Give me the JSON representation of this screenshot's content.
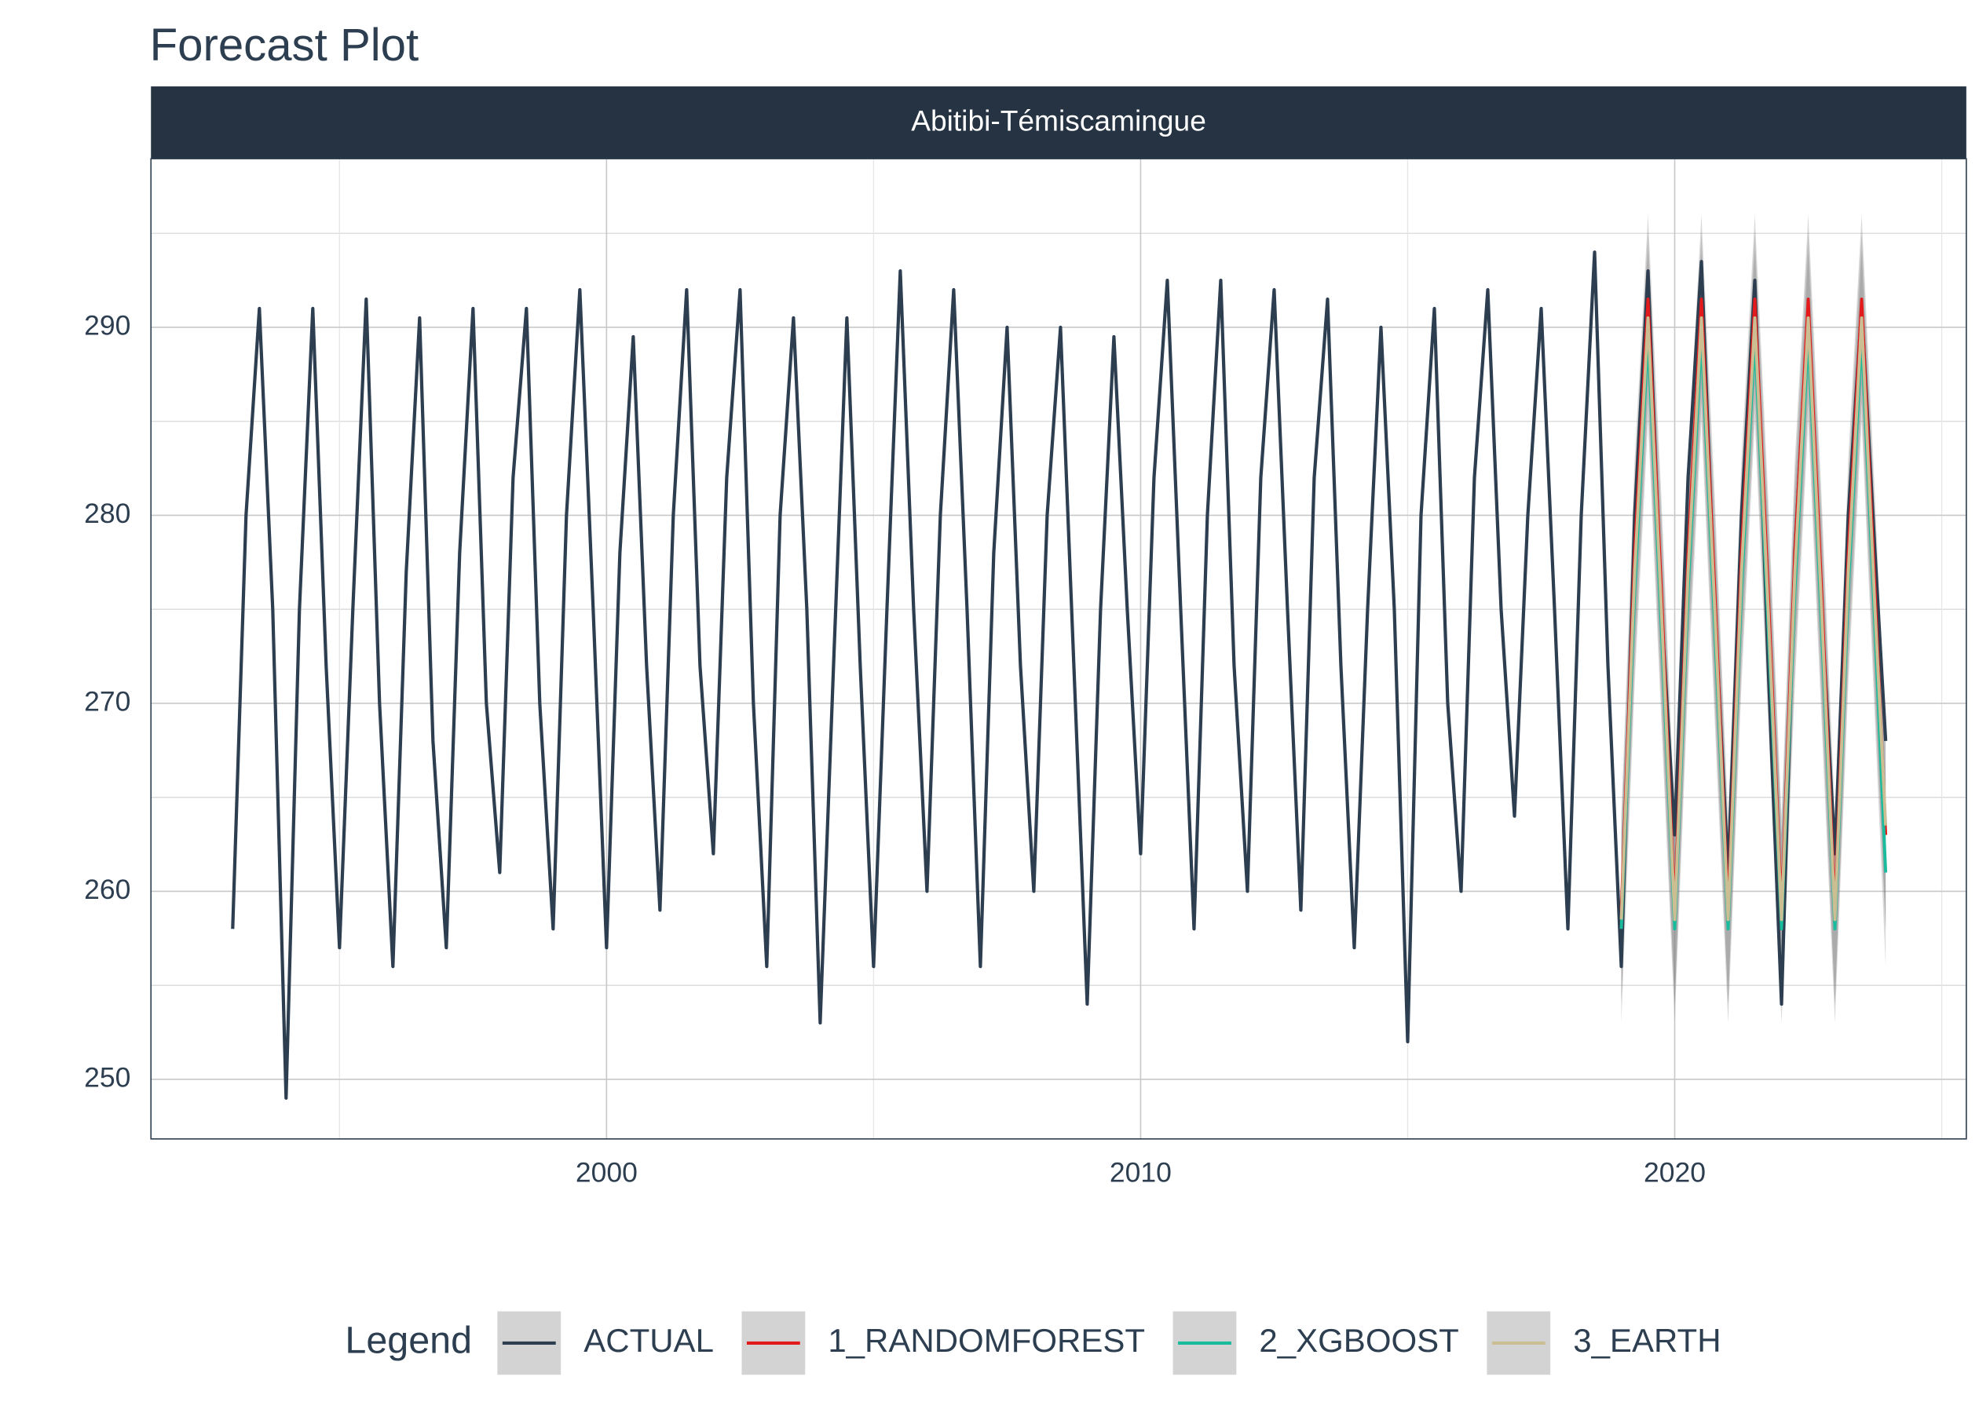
{
  "chart_data": {
    "type": "line",
    "title": "Forecast Plot",
    "facet": "Abitibi-Témiscamingue",
    "legend_title": "Legend",
    "legend_position": "bottom",
    "xlim": [
      1991.47,
      2025.46
    ],
    "xticks": [
      2000,
      2010,
      2020
    ],
    "x_minor_ticks": [
      1995,
      2005,
      2015,
      2025
    ],
    "ylim": [
      246.83,
      298.97
    ],
    "yticks": [
      250,
      260,
      270,
      280,
      290
    ],
    "y_minor_ticks": [
      255,
      265,
      275,
      285,
      295
    ],
    "grid": true,
    "band_color": "#808080",
    "series": [
      {
        "name": "ACTUAL",
        "color": "#2c3e50",
        "x": [
          1993,
          1993.25,
          1993.5,
          1993.75,
          1994,
          1994.25,
          1994.5,
          1994.75,
          1995,
          1995.25,
          1995.5,
          1995.75,
          1996,
          1996.25,
          1996.5,
          1996.75,
          1997,
          1997.25,
          1997.5,
          1997.75,
          1998,
          1998.25,
          1998.5,
          1998.75,
          1999,
          1999.25,
          1999.5,
          1999.75,
          2000,
          2000.25,
          2000.5,
          2000.75,
          2001,
          2001.25,
          2001.5,
          2001.75,
          2002,
          2002.25,
          2002.5,
          2002.75,
          2003,
          2003.25,
          2003.5,
          2003.75,
          2004,
          2004.25,
          2004.5,
          2004.75,
          2005,
          2005.25,
          2005.5,
          2005.75,
          2006,
          2006.25,
          2006.5,
          2006.75,
          2007,
          2007.25,
          2007.5,
          2007.75,
          2008,
          2008.25,
          2008.5,
          2008.75,
          2009,
          2009.25,
          2009.5,
          2009.75,
          2010,
          2010.25,
          2010.5,
          2010.75,
          2011,
          2011.25,
          2011.5,
          2011.75,
          2012,
          2012.25,
          2012.5,
          2012.75,
          2013,
          2013.25,
          2013.5,
          2013.75,
          2014,
          2014.25,
          2014.5,
          2014.75,
          2015,
          2015.25,
          2015.5,
          2015.75,
          2016,
          2016.25,
          2016.5,
          2016.75,
          2017,
          2017.25,
          2017.5,
          2017.75,
          2018,
          2018.25,
          2018.5,
          2018.75,
          2019,
          2019.25,
          2019.5,
          2019.75,
          2020,
          2020.25,
          2020.5,
          2020.75,
          2021,
          2021.25,
          2021.5,
          2021.75,
          2022,
          2022.25,
          2022.5,
          2022.75,
          2023,
          2023.25,
          2023.5,
          2023.75,
          2023.95
        ],
        "values": [
          258,
          280,
          291,
          275,
          249,
          275,
          291,
          272,
          257,
          275,
          291.5,
          270,
          256,
          277,
          290.5,
          268,
          257,
          278,
          291,
          270,
          261,
          282,
          291,
          270,
          258,
          280,
          292,
          275,
          257,
          278,
          289.5,
          272,
          259,
          280,
          292,
          272,
          262,
          282,
          292,
          270,
          256,
          280,
          290.5,
          275,
          253,
          272,
          290.5,
          272,
          256,
          275,
          293,
          275,
          260,
          280,
          292,
          275,
          256,
          278,
          290,
          272,
          260,
          280,
          290,
          272,
          254,
          275,
          289.5,
          275,
          262,
          282,
          292.5,
          275,
          258,
          280,
          292.5,
          272,
          260,
          282,
          292,
          275,
          259,
          282,
          291.5,
          272,
          257,
          275,
          290,
          275,
          252,
          280,
          291,
          270,
          260,
          282,
          292,
          275,
          264,
          280,
          291,
          275,
          258,
          280,
          294,
          272,
          256,
          280,
          293,
          275,
          263,
          282,
          293.5,
          275,
          261,
          280,
          292.5,
          272,
          254,
          278,
          291,
          275,
          262,
          280,
          291,
          278,
          268
        ]
      },
      {
        "name": "1_RANDOMFOREST",
        "color": "#e31a1c",
        "x": [
          2019,
          2019.25,
          2019.5,
          2019.75,
          2020,
          2020.25,
          2020.5,
          2020.75,
          2021,
          2021.25,
          2021.5,
          2021.75,
          2022,
          2022.25,
          2022.5,
          2022.75,
          2023,
          2023.25,
          2023.5,
          2023.75,
          2023.95
        ],
        "values": [
          259,
          278,
          291.5,
          276,
          259,
          278,
          291.5,
          276,
          259,
          278,
          291.5,
          276,
          259,
          278,
          291.5,
          276,
          259,
          278,
          291.5,
          276,
          263
        ],
        "lower": [
          254,
          273,
          287,
          271,
          254,
          273,
          287,
          271,
          254,
          273,
          287,
          271,
          254,
          273,
          287,
          271,
          254,
          273,
          287,
          271,
          258
        ],
        "upper": [
          264,
          283,
          296,
          281,
          264,
          283,
          296,
          281,
          264,
          283,
          296,
          281,
          264,
          283,
          296,
          281,
          264,
          283,
          296,
          281,
          268
        ]
      },
      {
        "name": "2_XGBOOST",
        "color": "#18bc9c",
        "x": [
          2019,
          2019.25,
          2019.5,
          2019.75,
          2020,
          2020.25,
          2020.5,
          2020.75,
          2021,
          2021.25,
          2021.5,
          2021.75,
          2022,
          2022.25,
          2022.5,
          2022.75,
          2023,
          2023.25,
          2023.5,
          2023.75,
          2023.95
        ],
        "values": [
          258,
          276,
          289.5,
          274,
          258,
          276,
          289.5,
          274,
          258,
          276,
          289.5,
          274,
          258,
          276,
          289.5,
          274,
          258,
          276,
          289.5,
          274,
          261
        ],
        "lower": [
          253,
          271,
          285,
          269,
          253,
          271,
          285,
          269,
          253,
          271,
          285,
          269,
          253,
          271,
          285,
          269,
          253,
          271,
          285,
          269,
          256
        ],
        "upper": [
          263,
          281,
          294,
          279,
          263,
          281,
          294,
          279,
          263,
          281,
          294,
          279,
          263,
          281,
          294,
          279,
          263,
          281,
          294,
          279,
          266
        ]
      },
      {
        "name": "3_EARTH",
        "color": "#ccbe93",
        "x": [
          2019,
          2019.25,
          2019.5,
          2019.75,
          2020,
          2020.25,
          2020.5,
          2020.75,
          2021,
          2021.25,
          2021.5,
          2021.75,
          2022,
          2022.25,
          2022.5,
          2022.75,
          2023,
          2023.25,
          2023.5,
          2023.75,
          2023.95
        ],
        "values": [
          258.5,
          277,
          290.5,
          275,
          258.5,
          277,
          290.5,
          275,
          258.5,
          277,
          290.5,
          275,
          258.5,
          277,
          290.5,
          275,
          258.5,
          277,
          290.5,
          275,
          263.5
        ],
        "lower": [
          254,
          272,
          286,
          270,
          254,
          272,
          286,
          270,
          254,
          272,
          286,
          270,
          254,
          272,
          286,
          270,
          254,
          272,
          286,
          270,
          258
        ],
        "upper": [
          263,
          282,
          295,
          280,
          263,
          282,
          295,
          280,
          263,
          282,
          295,
          280,
          263,
          282,
          295,
          280,
          263,
          282,
          295,
          280,
          269
        ]
      }
    ]
  }
}
